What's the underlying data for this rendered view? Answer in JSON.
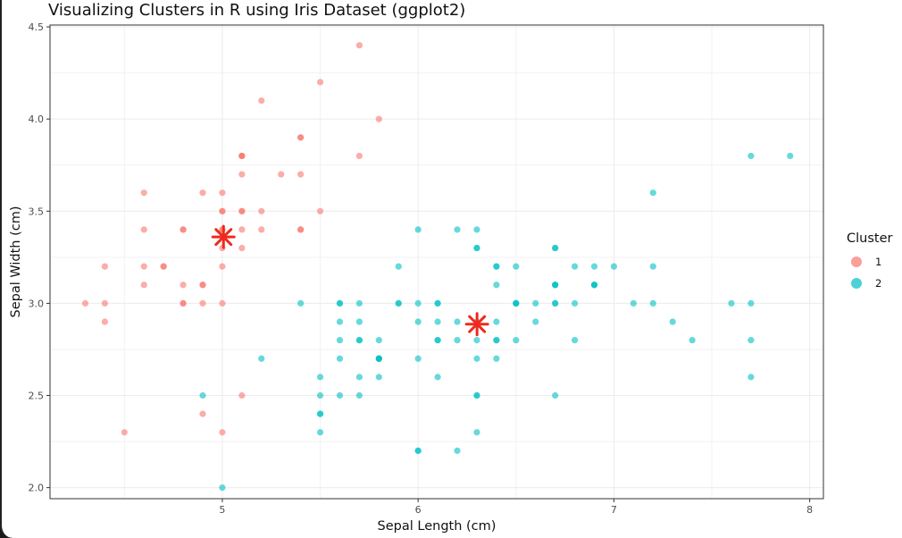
{
  "chart_data": {
    "type": "scatter",
    "title": "Visualizing Clusters in R using Iris Dataset (ggplot2)",
    "xlabel": "Sepal Length (cm)",
    "ylabel": "Sepal Width (cm)",
    "xlim": [
      4.12,
      8.07
    ],
    "ylim": [
      1.94,
      4.51
    ],
    "xticks": [
      5,
      6,
      7,
      8
    ],
    "xtick_labels": [
      "5",
      "6",
      "7",
      "8"
    ],
    "yticks": [
      2.0,
      2.5,
      3.0,
      3.5,
      4.0,
      4.5
    ],
    "ytick_labels": [
      "2.0",
      "2.5",
      "3.0",
      "3.5",
      "4.0",
      "4.5"
    ],
    "grid": true,
    "legend": {
      "title": "Cluster",
      "placement": "right"
    },
    "series": [
      {
        "name": "1",
        "color": "#F8766D",
        "points": [
          [
            5.1,
            3.5
          ],
          [
            4.9,
            3.0
          ],
          [
            4.7,
            3.2
          ],
          [
            4.6,
            3.1
          ],
          [
            5.0,
            3.6
          ],
          [
            5.4,
            3.9
          ],
          [
            4.6,
            3.4
          ],
          [
            5.0,
            3.4
          ],
          [
            4.4,
            2.9
          ],
          [
            4.9,
            3.1
          ],
          [
            5.4,
            3.7
          ],
          [
            4.8,
            3.4
          ],
          [
            4.8,
            3.0
          ],
          [
            4.3,
            3.0
          ],
          [
            5.8,
            4.0
          ],
          [
            5.7,
            4.4
          ],
          [
            5.4,
            3.9
          ],
          [
            5.1,
            3.5
          ],
          [
            5.7,
            3.8
          ],
          [
            5.1,
            3.8
          ],
          [
            5.4,
            3.4
          ],
          [
            5.1,
            3.7
          ],
          [
            4.6,
            3.6
          ],
          [
            5.1,
            3.3
          ],
          [
            4.8,
            3.4
          ],
          [
            5.0,
            3.0
          ],
          [
            5.0,
            3.4
          ],
          [
            5.2,
            3.5
          ],
          [
            5.2,
            3.4
          ],
          [
            4.7,
            3.2
          ],
          [
            4.8,
            3.1
          ],
          [
            5.4,
            3.4
          ],
          [
            5.2,
            4.1
          ],
          [
            5.5,
            4.2
          ],
          [
            4.9,
            3.1
          ],
          [
            5.0,
            3.2
          ],
          [
            5.5,
            3.5
          ],
          [
            4.9,
            3.6
          ],
          [
            4.4,
            3.0
          ],
          [
            5.1,
            3.4
          ],
          [
            5.0,
            3.5
          ],
          [
            4.5,
            2.3
          ],
          [
            4.4,
            3.2
          ],
          [
            5.0,
            3.5
          ],
          [
            5.1,
            3.8
          ],
          [
            4.8,
            3.0
          ],
          [
            5.1,
            3.8
          ],
          [
            4.6,
            3.2
          ],
          [
            5.3,
            3.7
          ],
          [
            5.0,
            3.3
          ],
          [
            4.9,
            2.4
          ],
          [
            5.0,
            2.3
          ],
          [
            5.1,
            2.5
          ]
        ]
      },
      {
        "name": "2",
        "color": "#00BFC4",
        "points": [
          [
            7.0,
            3.2
          ],
          [
            6.4,
            3.2
          ],
          [
            6.9,
            3.1
          ],
          [
            5.5,
            2.3
          ],
          [
            6.5,
            2.8
          ],
          [
            5.7,
            2.8
          ],
          [
            6.3,
            3.3
          ],
          [
            6.6,
            2.9
          ],
          [
            5.2,
            2.7
          ],
          [
            5.0,
            2.0
          ],
          [
            5.9,
            3.0
          ],
          [
            6.0,
            2.2
          ],
          [
            6.1,
            2.9
          ],
          [
            5.6,
            2.9
          ],
          [
            6.7,
            3.1
          ],
          [
            5.6,
            3.0
          ],
          [
            5.8,
            2.7
          ],
          [
            6.2,
            2.2
          ],
          [
            5.6,
            2.5
          ],
          [
            5.9,
            3.2
          ],
          [
            6.1,
            2.8
          ],
          [
            6.3,
            2.5
          ],
          [
            6.1,
            2.8
          ],
          [
            6.4,
            2.9
          ],
          [
            6.6,
            3.0
          ],
          [
            6.8,
            2.8
          ],
          [
            6.7,
            3.0
          ],
          [
            6.0,
            2.9
          ],
          [
            5.7,
            2.6
          ],
          [
            5.5,
            2.4
          ],
          [
            5.5,
            2.4
          ],
          [
            5.8,
            2.7
          ],
          [
            6.0,
            2.7
          ],
          [
            5.4,
            3.0
          ],
          [
            6.0,
            3.4
          ],
          [
            6.7,
            3.1
          ],
          [
            6.3,
            2.3
          ],
          [
            5.6,
            3.0
          ],
          [
            5.5,
            2.5
          ],
          [
            5.5,
            2.6
          ],
          [
            6.1,
            3.0
          ],
          [
            5.8,
            2.6
          ],
          [
            5.6,
            2.7
          ],
          [
            5.7,
            3.0
          ],
          [
            5.7,
            2.9
          ],
          [
            6.2,
            2.9
          ],
          [
            5.7,
            2.8
          ],
          [
            6.3,
            3.3
          ],
          [
            5.8,
            2.7
          ],
          [
            7.1,
            3.0
          ],
          [
            6.3,
            2.9
          ],
          [
            6.5,
            3.0
          ],
          [
            7.6,
            3.0
          ],
          [
            4.9,
            2.5
          ],
          [
            7.3,
            2.9
          ],
          [
            6.7,
            2.5
          ],
          [
            7.2,
            3.6
          ],
          [
            6.5,
            3.2
          ],
          [
            6.4,
            2.7
          ],
          [
            6.8,
            3.0
          ],
          [
            5.7,
            2.5
          ],
          [
            5.8,
            2.8
          ],
          [
            6.4,
            3.2
          ],
          [
            6.5,
            3.0
          ],
          [
            7.7,
            3.8
          ],
          [
            7.7,
            2.6
          ],
          [
            6.0,
            2.2
          ],
          [
            6.9,
            3.2
          ],
          [
            5.6,
            2.8
          ],
          [
            7.7,
            2.8
          ],
          [
            6.3,
            2.7
          ],
          [
            6.7,
            3.3
          ],
          [
            7.2,
            3.2
          ],
          [
            6.2,
            2.8
          ],
          [
            6.1,
            3.0
          ],
          [
            6.4,
            2.8
          ],
          [
            7.2,
            3.0
          ],
          [
            7.4,
            2.8
          ],
          [
            7.9,
            3.8
          ],
          [
            6.4,
            2.8
          ],
          [
            6.3,
            2.8
          ],
          [
            6.1,
            2.6
          ],
          [
            7.7,
            3.0
          ],
          [
            6.3,
            3.4
          ],
          [
            6.4,
            3.1
          ],
          [
            6.0,
            3.0
          ],
          [
            6.9,
            3.1
          ],
          [
            6.7,
            3.1
          ],
          [
            6.9,
            3.1
          ],
          [
            5.8,
            2.7
          ],
          [
            6.8,
            3.2
          ],
          [
            6.7,
            3.3
          ],
          [
            6.7,
            3.0
          ],
          [
            6.3,
            2.5
          ],
          [
            6.5,
            3.0
          ],
          [
            6.2,
            3.4
          ],
          [
            5.9,
            3.0
          ]
        ]
      }
    ],
    "centers": {
      "color": "#EE2A1E",
      "marker": "asterisk",
      "points": [
        [
          5.006,
          3.36
        ],
        [
          6.301,
          2.887
        ]
      ]
    }
  }
}
